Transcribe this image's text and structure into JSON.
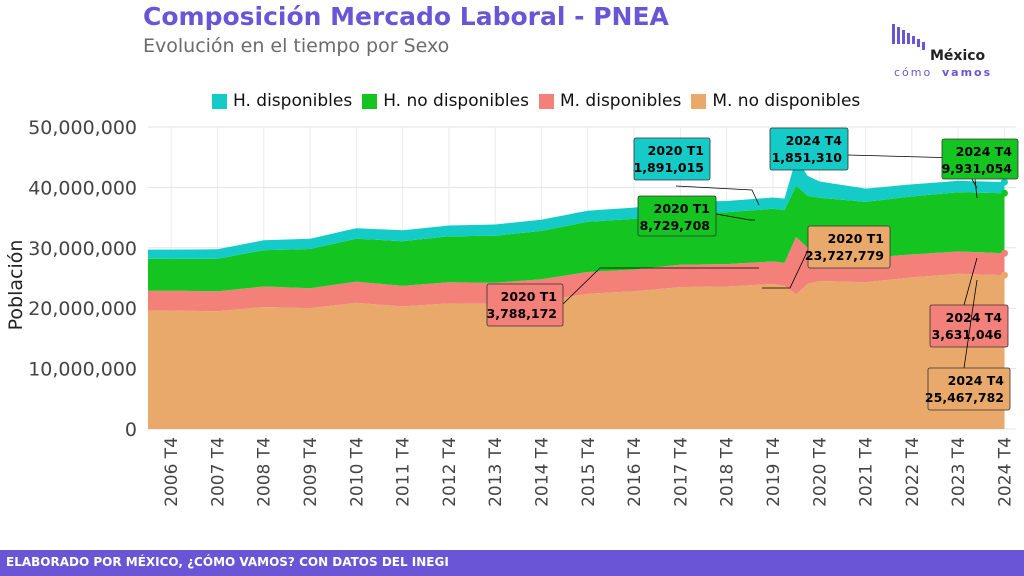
{
  "header": {
    "title": "Composición Mercado Laboral - PNEA",
    "subtitle": "Evolución en el tiempo por Sexo"
  },
  "logo": {
    "name": "México",
    "tagline_a": "cómo",
    "tagline_b": "vamos"
  },
  "footer": {
    "text": "ELABORADO POR MÉXICO, ¿CÓMO VAMOS? CON DATOS DEL INEGI"
  },
  "chart_data": {
    "type": "area",
    "stacked": true,
    "ylabel": "Población",
    "xlabel": "",
    "ylim": [
      0,
      50000000
    ],
    "yticks": [
      0,
      10000000,
      20000000,
      30000000,
      40000000,
      50000000
    ],
    "ytick_labels": [
      "0",
      "10,000,000",
      "20,000,000",
      "30,000,000",
      "40,000,000",
      "50,000,000"
    ],
    "x_tick_labels": [
      "2006 T4",
      "2007 T4",
      "2008 T4",
      "2009 T4",
      "2010 T4",
      "2011 T4",
      "2012 T4",
      "2013 T4",
      "2014 T4",
      "2015 T4",
      "2016 T4",
      "2017 T4",
      "2018 T4",
      "2019 T4",
      "2020 T4",
      "2021 T4",
      "2022 T4",
      "2023 T4",
      "2024 T4"
    ],
    "legend_position": "top",
    "grid": true,
    "series": [
      {
        "name": "M. no disponibles",
        "color": "#e8a96b",
        "anchors": [
          [
            2006.75,
            19.6
          ],
          [
            2007.75,
            19.5
          ],
          [
            2008.75,
            20.2
          ],
          [
            2009.75,
            20.0
          ],
          [
            2010.75,
            20.9
          ],
          [
            2011.75,
            20.3
          ],
          [
            2012.75,
            20.8
          ],
          [
            2013.75,
            20.7
          ],
          [
            2014.75,
            21.2
          ],
          [
            2015.75,
            22.4
          ],
          [
            2016.75,
            22.8
          ],
          [
            2017.75,
            23.5
          ],
          [
            2018.75,
            23.6
          ],
          [
            2019.75,
            24.0
          ],
          [
            2020.0,
            23.73
          ],
          [
            2020.25,
            22.3
          ],
          [
            2020.5,
            24.0
          ],
          [
            2020.75,
            24.5
          ],
          [
            2021.75,
            24.3
          ],
          [
            2022.75,
            25.1
          ],
          [
            2023.75,
            25.7
          ],
          [
            2024.75,
            25.47
          ]
        ]
      },
      {
        "name": "M. disponibles",
        "color": "#f4807a",
        "anchors": [
          [
            2006.75,
            3.3
          ],
          [
            2007.75,
            3.3
          ],
          [
            2008.75,
            3.4
          ],
          [
            2009.75,
            3.3
          ],
          [
            2010.75,
            3.5
          ],
          [
            2011.75,
            3.4
          ],
          [
            2012.75,
            3.5
          ],
          [
            2013.75,
            3.5
          ],
          [
            2014.75,
            3.6
          ],
          [
            2015.75,
            3.6
          ],
          [
            2016.75,
            3.6
          ],
          [
            2017.75,
            3.7
          ],
          [
            2018.75,
            3.7
          ],
          [
            2019.75,
            3.75
          ],
          [
            2020.0,
            3.79
          ],
          [
            2020.25,
            9.5
          ],
          [
            2020.5,
            6.0
          ],
          [
            2020.75,
            4.8
          ],
          [
            2021.75,
            4.0
          ],
          [
            2022.75,
            3.8
          ],
          [
            2023.75,
            3.7
          ],
          [
            2024.75,
            3.63
          ]
        ]
      },
      {
        "name": "H. no disponibles",
        "color": "#14c420",
        "anchors": [
          [
            2006.75,
            5.3
          ],
          [
            2007.75,
            5.4
          ],
          [
            2008.75,
            6.0
          ],
          [
            2009.75,
            6.5
          ],
          [
            2010.75,
            7.1
          ],
          [
            2011.75,
            7.4
          ],
          [
            2012.75,
            7.6
          ],
          [
            2013.75,
            7.8
          ],
          [
            2014.75,
            8.0
          ],
          [
            2015.75,
            8.3
          ],
          [
            2016.75,
            8.4
          ],
          [
            2017.75,
            8.5
          ],
          [
            2018.75,
            8.6
          ],
          [
            2019.75,
            8.7
          ],
          [
            2020.0,
            8.73
          ],
          [
            2020.25,
            8.5
          ],
          [
            2020.5,
            8.6
          ],
          [
            2020.75,
            9.0
          ],
          [
            2021.75,
            9.3
          ],
          [
            2022.75,
            9.6
          ],
          [
            2023.75,
            9.8
          ],
          [
            2024.75,
            9.93
          ]
        ]
      },
      {
        "name": "H. disponibles",
        "color": "#14cbc8",
        "anchors": [
          [
            2006.75,
            1.5
          ],
          [
            2007.75,
            1.55
          ],
          [
            2008.75,
            1.65
          ],
          [
            2009.75,
            1.7
          ],
          [
            2010.75,
            1.75
          ],
          [
            2011.75,
            1.8
          ],
          [
            2012.75,
            1.8
          ],
          [
            2013.75,
            1.85
          ],
          [
            2014.75,
            1.85
          ],
          [
            2015.75,
            1.85
          ],
          [
            2016.75,
            1.85
          ],
          [
            2017.75,
            1.85
          ],
          [
            2018.75,
            1.85
          ],
          [
            2019.75,
            1.88
          ],
          [
            2020.0,
            1.89
          ],
          [
            2020.25,
            4.5
          ],
          [
            2020.5,
            3.3
          ],
          [
            2020.75,
            2.7
          ],
          [
            2021.75,
            2.2
          ],
          [
            2022.75,
            2.0
          ],
          [
            2023.75,
            1.9
          ],
          [
            2024.75,
            1.85
          ]
        ]
      }
    ],
    "annotations": [
      {
        "series": "H. disponibles",
        "period": "2020 T1",
        "value": "1,891,015",
        "color": "#14cbc8"
      },
      {
        "series": "H. no disponibles",
        "period": "2020 T1",
        "value": "8,729,708",
        "color": "#14c420"
      },
      {
        "series": "M. disponibles",
        "period": "2020 T1",
        "value": "3,788,172",
        "color": "#f4807a"
      },
      {
        "series": "M. no disponibles",
        "period": "2020 T1",
        "value": "23,727,779",
        "color": "#e8a96b"
      },
      {
        "series": "H. disponibles",
        "period": "2024 T4",
        "value": "1,851,310",
        "color": "#14cbc8"
      },
      {
        "series": "H. no disponibles",
        "period": "2024 T4",
        "value": "9,931,054",
        "color": "#14c420"
      },
      {
        "series": "M. disponibles",
        "period": "2024 T4",
        "value": "3,631,046",
        "color": "#f4807a"
      },
      {
        "series": "M. no disponibles",
        "period": "2024 T4",
        "value": "25,467,782",
        "color": "#e8a96b"
      }
    ]
  }
}
